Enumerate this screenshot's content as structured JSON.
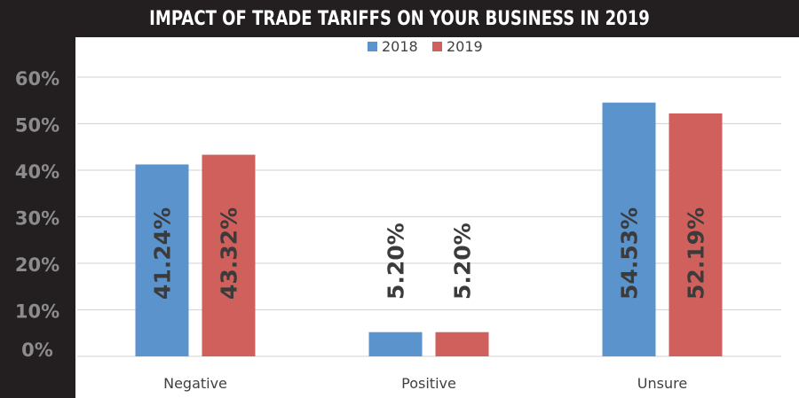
{
  "chart_data": {
    "type": "bar",
    "title": "IMPACT OF TRADE TARIFFS ON YOUR BUSINESS IN 2019",
    "categories": [
      "Negative",
      "Positive",
      "Unsure"
    ],
    "series": [
      {
        "name": "2018",
        "values": [
          41.24,
          5.2,
          54.53
        ],
        "labels": [
          "41.24%",
          "5.20%",
          "54.53%"
        ],
        "color": "#5b93cc"
      },
      {
        "name": "2019",
        "values": [
          43.32,
          5.2,
          52.19
        ],
        "labels": [
          "43.32%",
          "5.20%",
          "52.19%"
        ],
        "color": "#d0605c"
      }
    ],
    "yticks": [
      0,
      10,
      20,
      30,
      40,
      50,
      60
    ],
    "ytick_labels": [
      "0%",
      "10%",
      "20%",
      "30%",
      "40%",
      "50%",
      "60%"
    ],
    "ylim": [
      0,
      60
    ],
    "grid": true,
    "legend": "top-center",
    "colors": {
      "background_dark": "#231f20",
      "plot_bg": "#ffffff",
      "grid": "#d9d9d9",
      "axis_text": "#8c8c8c",
      "label_text": "#3b3b3b"
    }
  }
}
